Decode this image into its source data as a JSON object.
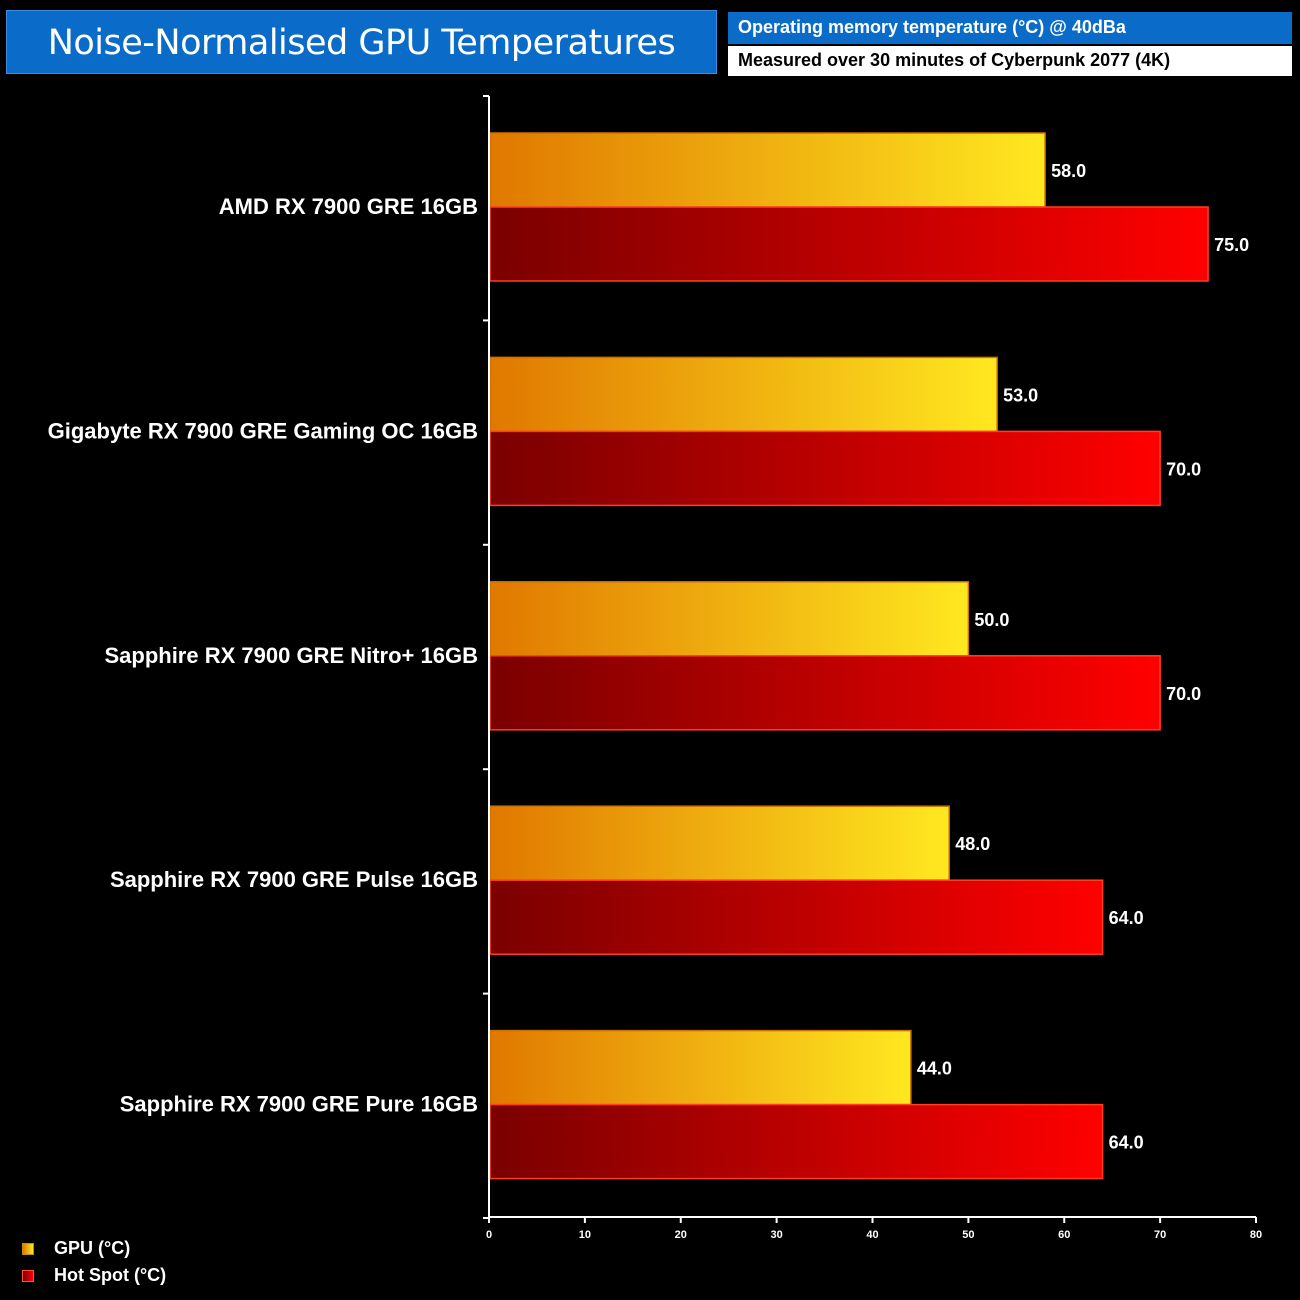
{
  "header": {
    "title": "Noise-Normalised GPU Temperatures",
    "subtitle": "Operating memory temperature (°C) @ 40dBa",
    "note": "Measured over 30 minutes of Cyberpunk 2077 (4K)"
  },
  "colors": {
    "background": "#000000",
    "title_box": "#0a6bc9",
    "gpu_start": "#e07800",
    "gpu_end": "#ffe820",
    "hotspot_start": "#7a0000",
    "hotspot_end": "#ff0000"
  },
  "chart_data": {
    "type": "bar",
    "orientation": "horizontal",
    "title": "Noise-Normalised GPU Temperatures",
    "categories": [
      "AMD RX 7900 GRE 16GB",
      "Gigabyte RX 7900 GRE Gaming OC 16GB",
      "Sapphire RX 7900 GRE Nitro+ 16GB",
      "Sapphire RX 7900 GRE Pulse 16GB",
      "Sapphire RX 7900 GRE Pure 16GB"
    ],
    "series": [
      {
        "name": "GPU (°C)",
        "values": [
          58.0,
          53.0,
          50.0,
          48.0,
          44.0
        ],
        "labels": [
          "58.0",
          "53.0",
          "50.0",
          "48.0",
          "44.0"
        ]
      },
      {
        "name": "Hot Spot (°C)",
        "values": [
          75.0,
          70.0,
          70.0,
          64.0,
          64.0
        ],
        "labels": [
          "75.0",
          "70.0",
          "70.0",
          "64.0",
          "64.0"
        ]
      }
    ],
    "xlim": [
      0,
      80
    ],
    "xticks": [
      "0",
      "10",
      "20",
      "30",
      "40",
      "50",
      "60",
      "70",
      "80"
    ],
    "grid": false,
    "legend_position": "bottom-left"
  }
}
